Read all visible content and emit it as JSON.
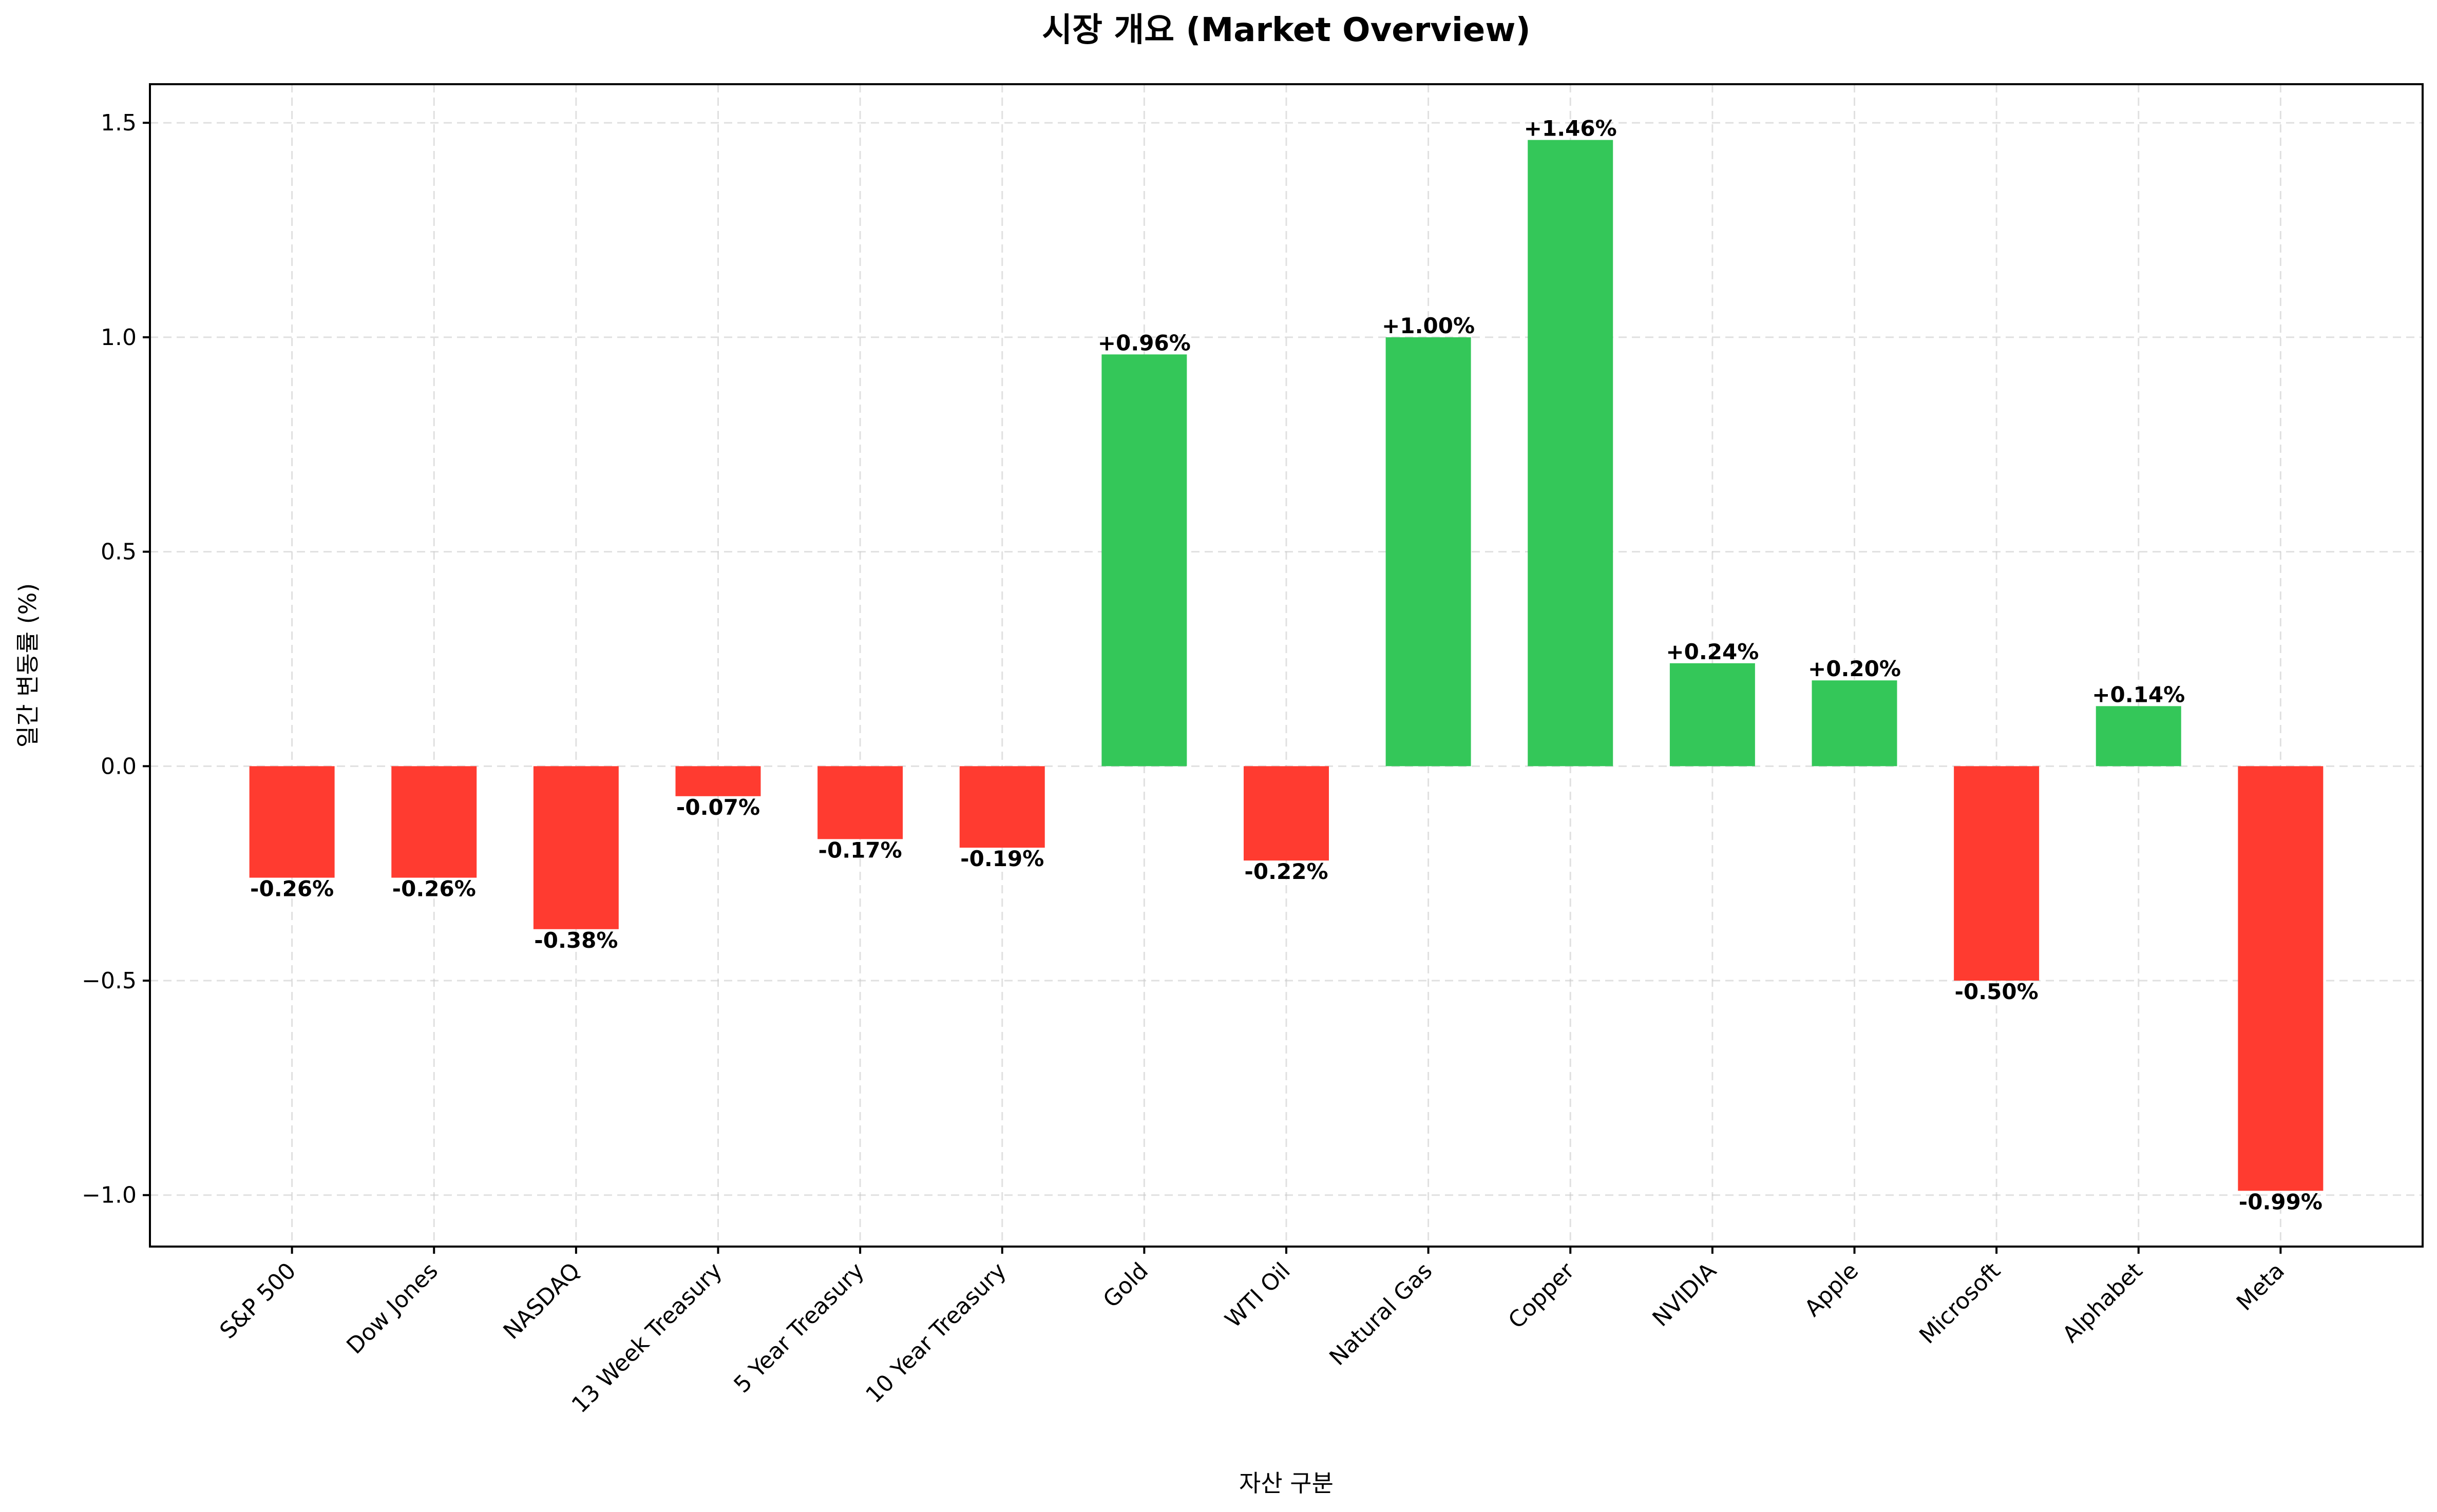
{
  "chart_data": {
    "type": "bar",
    "title": "시장 개요 (Market Overview)",
    "xlabel": "자산 구분",
    "ylabel": "일간 변동률 (%)",
    "ylim": [
      -1.12,
      1.59
    ],
    "yticks": [
      -1.0,
      -0.5,
      0.0,
      0.5,
      1.0,
      1.5
    ],
    "ytick_labels": [
      "−1.0",
      "−0.5",
      "0.0",
      "0.5",
      "1.0",
      "1.5"
    ],
    "grid": true,
    "categories": [
      "S&P 500",
      "Dow Jones",
      "NASDAQ",
      "13 Week Treasury",
      "5 Year Treasury",
      "10 Year Treasury",
      "Gold",
      "WTI Oil",
      "Natural Gas",
      "Copper",
      "NVIDIA",
      "Apple",
      "Microsoft",
      "Alphabet",
      "Meta"
    ],
    "values": [
      -0.26,
      -0.26,
      -0.38,
      -0.07,
      -0.17,
      -0.19,
      0.96,
      -0.22,
      1.0,
      1.46,
      0.24,
      0.2,
      -0.5,
      0.14,
      -0.99
    ],
    "data_labels": [
      "-0.26%",
      "-0.26%",
      "-0.38%",
      "-0.07%",
      "-0.17%",
      "-0.19%",
      "+0.96%",
      "-0.22%",
      "+1.00%",
      "+1.46%",
      "+0.24%",
      "+0.20%",
      "-0.50%",
      "+0.14%",
      "-0.99%"
    ],
    "colors": {
      "positive": "#34c759",
      "negative": "#ff3b30"
    }
  }
}
